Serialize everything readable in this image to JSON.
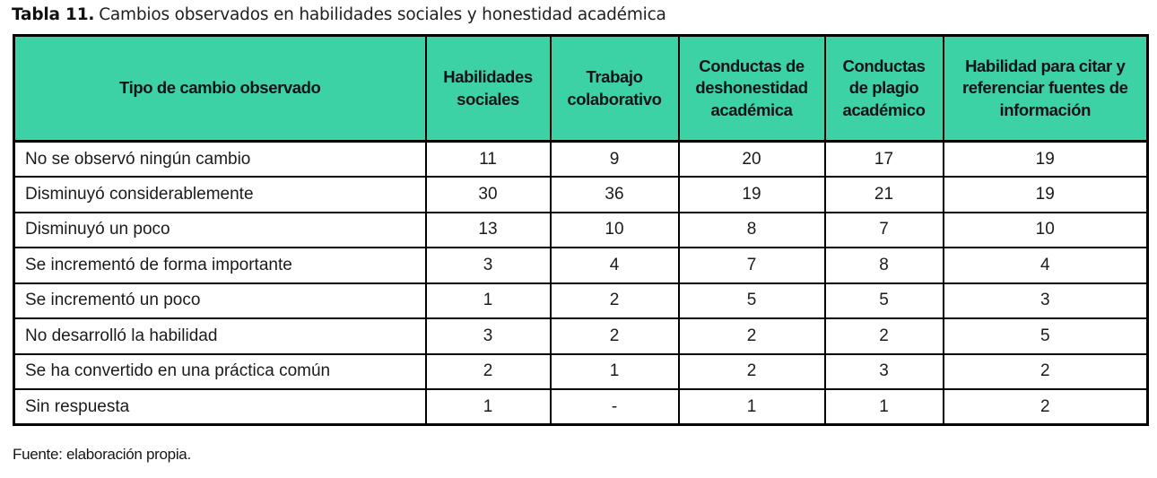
{
  "title": {
    "label": "Tabla 11.",
    "text": "Cambios observados en habilidades sociales y honestidad académica"
  },
  "table": {
    "header_bg_color": "#3dd1a6",
    "border_color": "#000000",
    "columns": [
      "Tipo de cambio observado",
      "Habilidades sociales",
      "Trabajo colaborativo",
      "Conductas de deshonestidad académica",
      "Conductas de plagio académico",
      "Habilidad para citar y referenciar fuentes de información"
    ],
    "rows": [
      {
        "label": "No se observó ningún cambio",
        "values": [
          "11",
          "9",
          "20",
          "17",
          "19"
        ]
      },
      {
        "label": "Disminuyó considerablemente",
        "values": [
          "30",
          "36",
          "19",
          "21",
          "19"
        ]
      },
      {
        "label": "Disminuyó un poco",
        "values": [
          "13",
          "10",
          "8",
          "7",
          "10"
        ]
      },
      {
        "label": "Se incrementó de forma importante",
        "values": [
          "3",
          "4",
          "7",
          "8",
          "4"
        ]
      },
      {
        "label": "Se incrementó un poco",
        "values": [
          "1",
          "2",
          "5",
          "5",
          "3"
        ]
      },
      {
        "label": "No desarrolló la habilidad",
        "values": [
          "3",
          "2",
          "2",
          "2",
          "5"
        ]
      },
      {
        "label": "Se ha convertido en una práctica común",
        "values": [
          "2",
          "1",
          "2",
          "3",
          "2"
        ]
      },
      {
        "label": "Sin respuesta",
        "values": [
          "1",
          "-",
          "1",
          "1",
          "2"
        ]
      }
    ]
  },
  "footer": {
    "source": "Fuente: elaboración propia."
  }
}
